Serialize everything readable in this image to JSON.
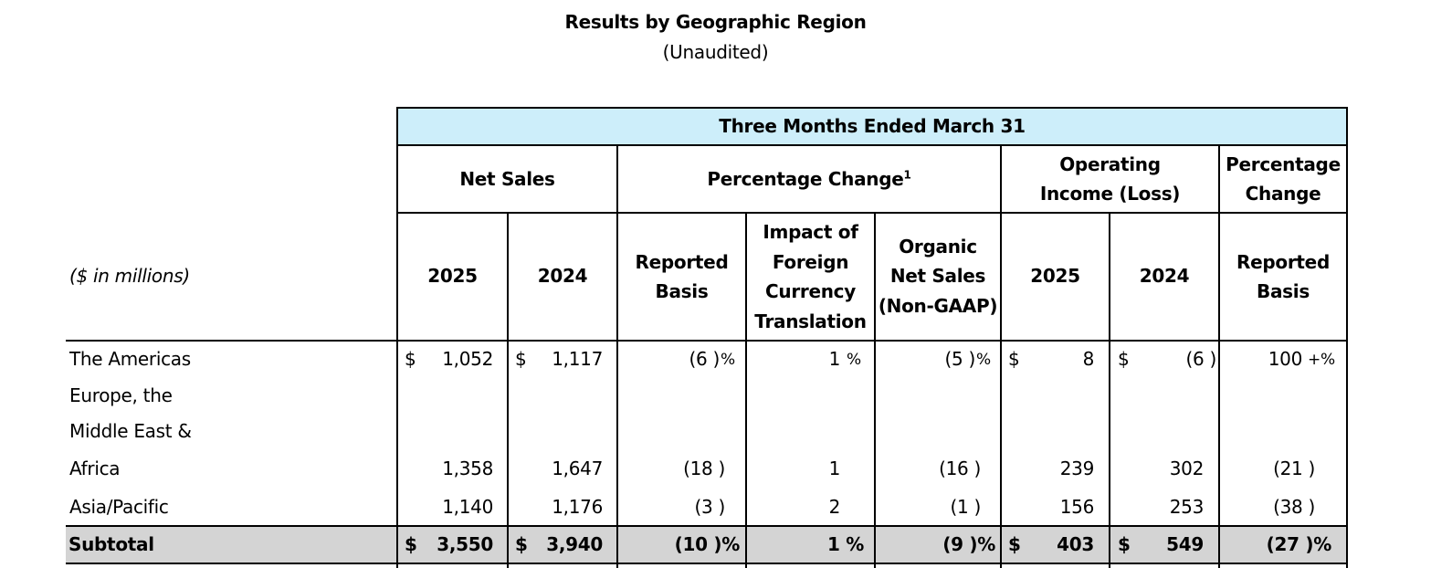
{
  "title": "Results by Geographic Region",
  "subtitle": "(Unaudited)",
  "units_label": "($ in millions)",
  "header": {
    "period": "Three Months Ended March 31",
    "net_sales": "Net Sales",
    "pct_change": "Percentage Change",
    "pct_change_note": "1",
    "op_income_1": "Operating",
    "op_income_2": "Income (Loss)",
    "pct_change2_1": "Percentage",
    "pct_change2_2": "Change",
    "year_2025": "2025",
    "year_2024": "2024",
    "reported_1": "Reported",
    "reported_2": "Basis",
    "impact_1": "Impact of",
    "impact_2": "Foreign",
    "impact_3": "Currency",
    "impact_4": "Translation",
    "organic_1": "Organic",
    "organic_2": "Net Sales",
    "organic_3": "(Non-GAAP)"
  },
  "rows": {
    "americas": {
      "label": "The Americas",
      "ns_cur": "$",
      "ns_2025": "1,052",
      "ns24_cur": "$",
      "ns_2024": "1,117",
      "reported": "(6 )",
      "reported_sfx": "%",
      "impact": "1",
      "impact_sfx": "%",
      "organic": "(5 )",
      "organic_sfx": "%",
      "oi_cur": "$",
      "oi_2025": "8",
      "oi24_cur": "$",
      "oi_2024": "(6 )",
      "oi_change": "100",
      "oi_change_sfx": "+%"
    },
    "emea": {
      "label_1": "Europe, the",
      "label_2": "Middle East &",
      "label_3": "Africa",
      "ns_2025": "1,358",
      "ns_2024": "1,647",
      "reported": "(18 )",
      "impact": "1",
      "organic": "(16 )",
      "oi_2025": "239",
      "oi_2024": "302",
      "oi_change": "(21 )"
    },
    "apac": {
      "label": "Asia/Pacific",
      "ns_2025": "1,140",
      "ns_2024": "1,176",
      "reported": "(3 )",
      "impact": "2",
      "organic": "(1 )",
      "oi_2025": "156",
      "oi_2024": "253",
      "oi_change": "(38 )"
    },
    "subtotal": {
      "label": "Subtotal",
      "ns_cur": "$",
      "ns_2025": "3,550",
      "ns24_cur": "$",
      "ns_2024": "3,940",
      "reported": "(10 )%",
      "impact": "1 %",
      "organic": "(9 )%",
      "oi_cur": "$",
      "oi_2025": "403",
      "oi24_cur": "$",
      "oi_2024": "549",
      "oi_change": "(27 )%"
    }
  },
  "colors": {
    "header_fill": "#cdeefa",
    "subtotal_fill": "#d4d4d4"
  }
}
